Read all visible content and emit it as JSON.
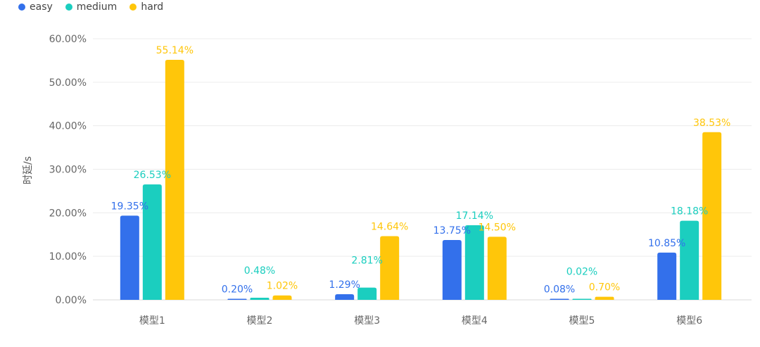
{
  "chart_data": {
    "type": "bar",
    "title": "",
    "xlabel": "",
    "ylabel": "时延/s",
    "ylim": [
      0,
      60
    ],
    "y_ticks": [
      "0.00%",
      "10.00%",
      "20.00%",
      "30.00%",
      "40.00%",
      "50.00%",
      "60.00%"
    ],
    "grid": true,
    "legend_position": "top-left",
    "categories": [
      "模型1",
      "模型2",
      "模型3",
      "模型4",
      "模型5",
      "模型6"
    ],
    "series": [
      {
        "name": "easy",
        "color": "#3370eb",
        "values": [
          19.35,
          0.2,
          1.29,
          13.75,
          0.08,
          10.85
        ],
        "labels": [
          "19.35%",
          "0.20%",
          "1.29%",
          "13.75%",
          "0.08%",
          "10.85%"
        ]
      },
      {
        "name": "medium",
        "color": "#1bcebf",
        "values": [
          26.53,
          0.48,
          2.81,
          17.14,
          0.02,
          18.18
        ],
        "labels": [
          "26.53%",
          "0.48%",
          "2.81%",
          "17.14%",
          "0.02%",
          "18.18%"
        ]
      },
      {
        "name": "hard",
        "color": "#ffc60a",
        "values": [
          55.14,
          1.02,
          14.64,
          14.5,
          0.7,
          38.53
        ],
        "labels": [
          "55.14%",
          "1.02%",
          "14.64%",
          "14.50%",
          "0.70%",
          "38.53%"
        ]
      }
    ]
  }
}
